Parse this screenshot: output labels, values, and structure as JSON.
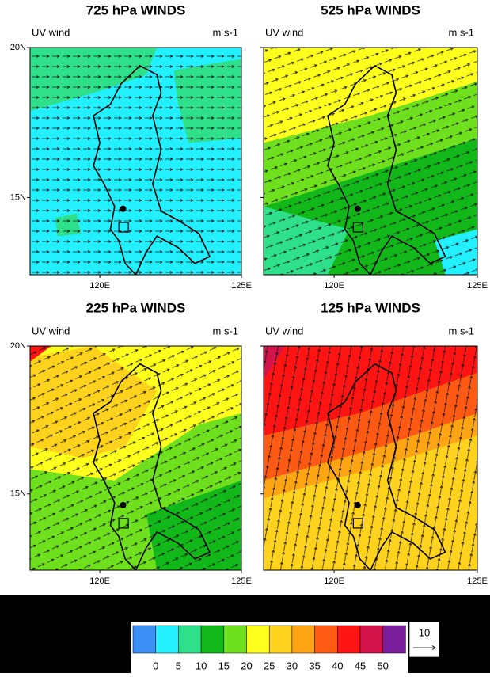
{
  "panels": [
    {
      "title": "725 hPa WINDS",
      "left_label": "UV wind",
      "right_label": "m s-1",
      "ylabels": [
        "20N",
        "15N"
      ],
      "xlabels": [
        "120E",
        "125E"
      ]
    },
    {
      "title": "525 hPa WINDS",
      "left_label": "UV wind",
      "right_label": "m s-1",
      "ylabels": [],
      "xlabels": [
        "120E",
        "125E"
      ]
    },
    {
      "title": "225 hPa WINDS",
      "left_label": "UV wind",
      "right_label": "m s-1",
      "ylabels": [
        "20N",
        "15N"
      ],
      "xlabels": [
        "120E",
        "125E"
      ]
    },
    {
      "title": "125 hPa WINDS",
      "left_label": "UV wind",
      "right_label": "m s-1",
      "ylabels": [],
      "xlabels": [
        "120E",
        "125E"
      ]
    }
  ],
  "colorbar": {
    "colors": [
      "#3b8ff5",
      "#22f0ff",
      "#2ee08a",
      "#12b81a",
      "#6ee01e",
      "#ffff1e",
      "#ffd21e",
      "#ffa514",
      "#ff5a14",
      "#ff1414",
      "#d2144b",
      "#7a1e9e"
    ],
    "labels": [
      0,
      5,
      10,
      15,
      20,
      25,
      30,
      35,
      40,
      45,
      50
    ],
    "reference_vector": "10"
  }
}
